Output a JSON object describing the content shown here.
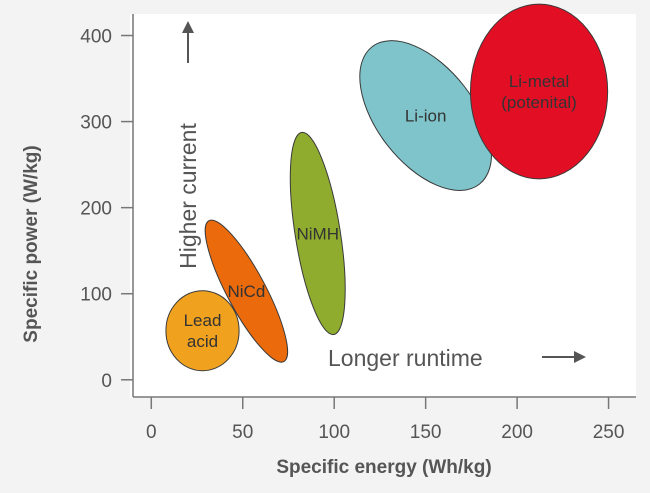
{
  "chart_data": {
    "type": "scatter",
    "title": "",
    "xlabel": "Specific energy (Wh/kg)",
    "ylabel": "Specific power (W/kg)",
    "xlim": [
      -10,
      265
    ],
    "ylim": [
      -20,
      425
    ],
    "xticks": [
      0,
      50,
      100,
      150,
      200,
      250
    ],
    "yticks": [
      0,
      100,
      200,
      300,
      400
    ],
    "grid": false,
    "regions": [
      {
        "name": "lead-acid",
        "label_lines": [
          "Lead",
          "acid"
        ],
        "color": "#f0a21e",
        "x_center": 28,
        "y_center": 57,
        "x_min": 8,
        "x_max": 48,
        "y_min": 10,
        "y_max": 103,
        "tilt_deg": 0
      },
      {
        "name": "nicd",
        "label_lines": [
          "NiCd"
        ],
        "color": "#ea6a0c",
        "x_center": 52,
        "y_center": 103,
        "x_min": 30,
        "x_max": 75,
        "y_min": 33,
        "y_max": 198,
        "tilt_deg": 28
      },
      {
        "name": "nimh",
        "label_lines": [
          "NiMH"
        ],
        "color": "#8fac2e",
        "x_center": 91,
        "y_center": 170,
        "x_min": 76,
        "x_max": 106,
        "y_min": 53,
        "y_max": 288,
        "tilt_deg": 9
      },
      {
        "name": "li-ion",
        "label_lines": [
          "Li-ion"
        ],
        "color": "#7ec4ca",
        "x_center": 150,
        "y_center": 307,
        "x_min": 114,
        "x_max": 186,
        "y_min": 216,
        "y_max": 390,
        "tilt_deg": 38
      },
      {
        "name": "li-metal",
        "label_lines": [
          "Li-metal",
          "(potenital)"
        ],
        "color": "#e20f24",
        "x_center": 212,
        "y_center": 335,
        "x_min": 175,
        "x_max": 250,
        "y_min": 222,
        "y_max": 425,
        "tilt_deg": 0
      }
    ],
    "annotations": [
      {
        "text": "Higher current",
        "direction": "up"
      },
      {
        "text": "Longer runtime",
        "direction": "right"
      }
    ]
  }
}
